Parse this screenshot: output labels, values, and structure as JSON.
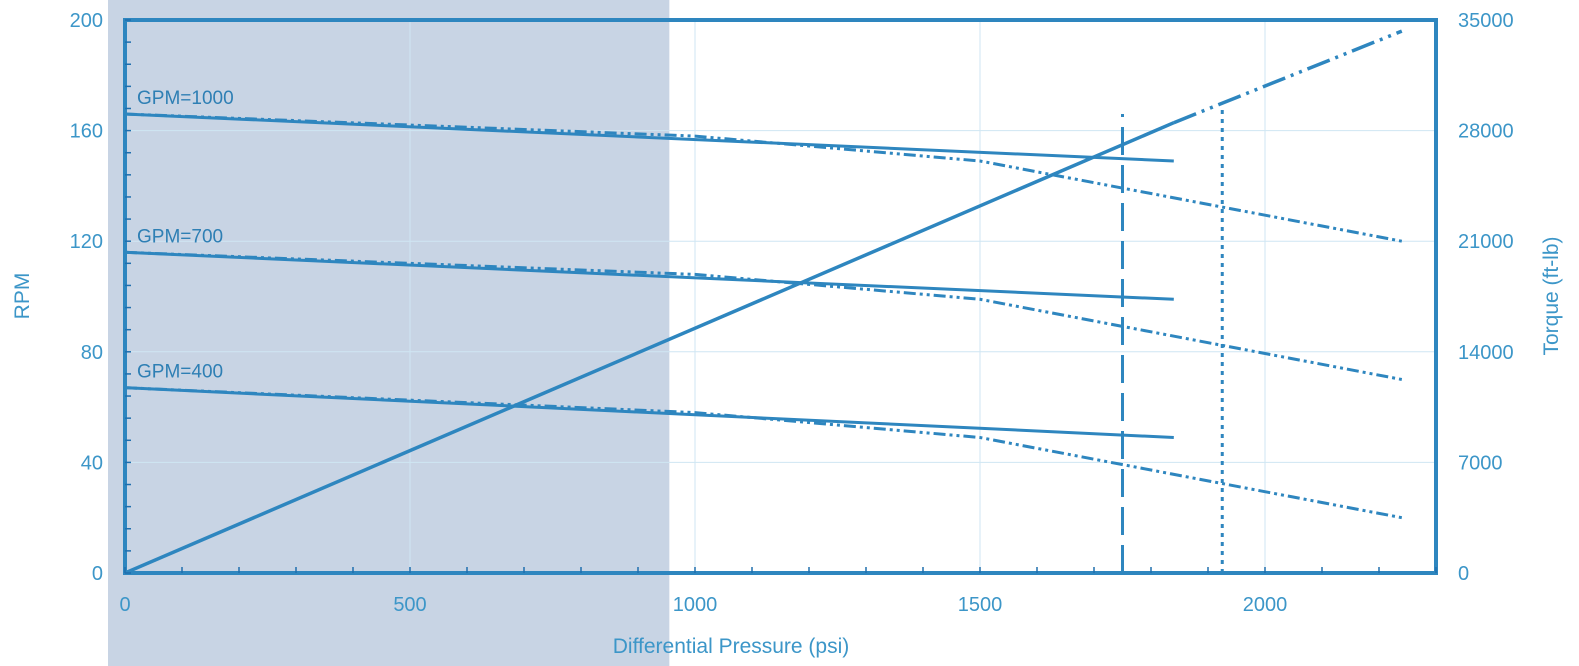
{
  "colors": {
    "primary": "#2e86bf",
    "primary_dark": "#1f6fae",
    "text": "#3c96c8",
    "grid": "#cfe6f3",
    "shade": "#c8d4e4"
  },
  "chart_data": {
    "type": "line",
    "xlabel": "Differential Pressure (psi)",
    "ylabel": "RPM",
    "y2label": "Torque (ft-lb)",
    "xlim": [
      0,
      2300
    ],
    "ylim": [
      0,
      200
    ],
    "y2lim": [
      0,
      35000
    ],
    "xticks": [
      0,
      500,
      1000,
      1500,
      2000
    ],
    "yticks": [
      0,
      40,
      80,
      120,
      160,
      200
    ],
    "y2ticks": [
      0,
      7000,
      14000,
      21000,
      28000,
      35000
    ],
    "grid": true,
    "shaded_region": {
      "x_from": 0,
      "x_to": 955
    },
    "rpm_series": [
      {
        "name": "GPM=1000",
        "solid": [
          [
            0,
            166
          ],
          [
            1840,
            149
          ]
        ],
        "dashed": [
          [
            0,
            166
          ],
          [
            1000,
            158
          ],
          [
            1500,
            149
          ],
          [
            2240,
            120
          ]
        ]
      },
      {
        "name": "GPM=700",
        "solid": [
          [
            0,
            116
          ],
          [
            1840,
            99
          ]
        ],
        "dashed": [
          [
            0,
            116
          ],
          [
            1000,
            108
          ],
          [
            1500,
            99
          ],
          [
            2240,
            70
          ]
        ]
      },
      {
        "name": "GPM=400",
        "solid": [
          [
            0,
            67
          ],
          [
            1840,
            49
          ]
        ],
        "dashed": [
          [
            0,
            67
          ],
          [
            1000,
            58
          ],
          [
            1500,
            49
          ],
          [
            2240,
            20
          ]
        ]
      }
    ],
    "torque_series": {
      "solid": [
        [
          0,
          0
        ],
        [
          1840,
          28500
        ]
      ],
      "dashed": [
        [
          1840,
          28500
        ],
        [
          2240,
          34300
        ]
      ]
    },
    "reference_lines": [
      {
        "x": 1750,
        "y_from": 0,
        "y_to": 166,
        "style": "dashed"
      },
      {
        "x": 1925,
        "y_from": 0,
        "y_to": 168,
        "style": "dotted"
      }
    ]
  }
}
